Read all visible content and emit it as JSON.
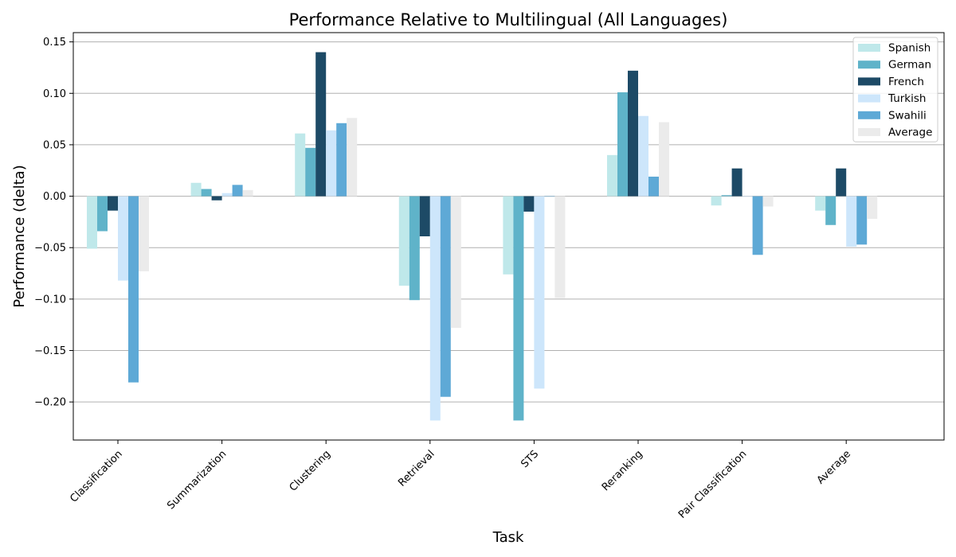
{
  "chart_data": {
    "type": "bar",
    "title": "Performance Relative to Multilingual (All Languages)",
    "xlabel": "Task",
    "ylabel": "Performance (delta)",
    "categories": [
      "Classification",
      "Summarization",
      "Clustering",
      "Retrieval",
      "STS",
      "Reranking",
      "Pair Classification",
      "Average"
    ],
    "ylim": [
      -0.237,
      0.159
    ],
    "yticks": [
      -0.2,
      -0.15,
      -0.1,
      -0.05,
      0.0,
      0.05,
      0.1,
      0.15
    ],
    "ytick_labels": [
      "−0.20",
      "−0.15",
      "−0.10",
      "−0.05",
      "0.00",
      "0.05",
      "0.10",
      "0.15"
    ],
    "grid": true,
    "grid_axis": "y",
    "legend_position": "top-right",
    "series": [
      {
        "name": "Spanish",
        "color": "#bfe8ea",
        "values": [
          -0.051,
          0.013,
          0.061,
          -0.087,
          -0.076,
          0.04,
          -0.009,
          -0.014
        ]
      },
      {
        "name": "German",
        "color": "#5fb3c9",
        "values": [
          -0.034,
          0.007,
          0.047,
          -0.101,
          -0.218,
          0.101,
          0.001,
          -0.028
        ]
      },
      {
        "name": "French",
        "color": "#1d4a66",
        "values": [
          -0.014,
          -0.004,
          0.14,
          -0.039,
          -0.015,
          0.122,
          0.027,
          0.027
        ]
      },
      {
        "name": "Turkish",
        "color": "#cde6fb",
        "values": [
          -0.082,
          0.003,
          0.064,
          -0.218,
          -0.187,
          0.078,
          0.0,
          -0.049
        ]
      },
      {
        "name": "Swahili",
        "color": "#5ea9d6",
        "values": [
          -0.181,
          0.011,
          0.071,
          -0.195,
          0.0,
          0.019,
          -0.057,
          -0.047
        ]
      },
      {
        "name": "Average",
        "color": "#ebebeb",
        "values": [
          -0.073,
          0.006,
          0.076,
          -0.128,
          -0.099,
          0.072,
          -0.01,
          -0.022
        ]
      }
    ]
  }
}
